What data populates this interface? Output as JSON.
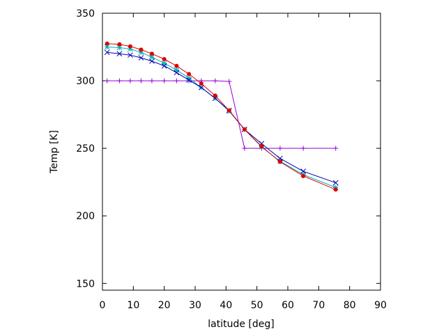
{
  "chart_data": {
    "type": "line",
    "xlabel": "latitude [deg]",
    "ylabel": "Temp [K]",
    "xlim": [
      0,
      90
    ],
    "ylim": [
      145,
      350
    ],
    "xticks": [
      0,
      10,
      20,
      30,
      40,
      50,
      60,
      70,
      80,
      90
    ],
    "yticks": [
      150,
      200,
      250,
      300,
      350
    ],
    "grid": false,
    "legend": "none",
    "series": [
      {
        "color": "#9400d3",
        "marker": "plus",
        "x": [
          1.5,
          5.5,
          9,
          12.5,
          16,
          20,
          24,
          28,
          32,
          36.5,
          41,
          46,
          51.5,
          57.5,
          65,
          75.5
        ],
        "y": [
          300,
          300,
          300,
          300,
          300,
          300,
          300,
          300,
          300,
          300,
          299.5,
          250,
          250,
          250,
          250,
          250
        ]
      },
      {
        "color": "#00b2b2",
        "marker": "star",
        "x": [
          1.5,
          5.5,
          9,
          12.5,
          16,
          20,
          24,
          28,
          32,
          36.5,
          41,
          46,
          51.5,
          57.5,
          65,
          75.5
        ],
        "y": [
          325,
          324.5,
          323.5,
          321,
          317.5,
          313,
          308,
          302,
          295,
          287,
          277.5,
          264,
          251,
          240.5,
          230.5,
          221
        ]
      },
      {
        "color": "#0000b2",
        "marker": "x",
        "x": [
          1.5,
          5.5,
          9,
          12.5,
          16,
          20,
          24,
          28,
          32,
          36.5,
          41,
          46,
          51.5,
          57.5,
          65,
          75.5
        ],
        "y": [
          321,
          320,
          319,
          317,
          314.5,
          311,
          306,
          300.5,
          295,
          287,
          278,
          264,
          253.5,
          242.5,
          233,
          224.5
        ]
      },
      {
        "color": "#e00000",
        "marker": "filled-circle",
        "x": [
          1.5,
          5.5,
          9,
          12.5,
          16,
          20,
          24,
          28,
          32,
          36.5,
          41,
          46,
          51.5,
          57.5,
          65,
          75.5
        ],
        "y": [
          327.5,
          327,
          325.5,
          323,
          320,
          316,
          311,
          305,
          298,
          289,
          278,
          264,
          251.5,
          240,
          229.5,
          219.5
        ]
      }
    ]
  }
}
